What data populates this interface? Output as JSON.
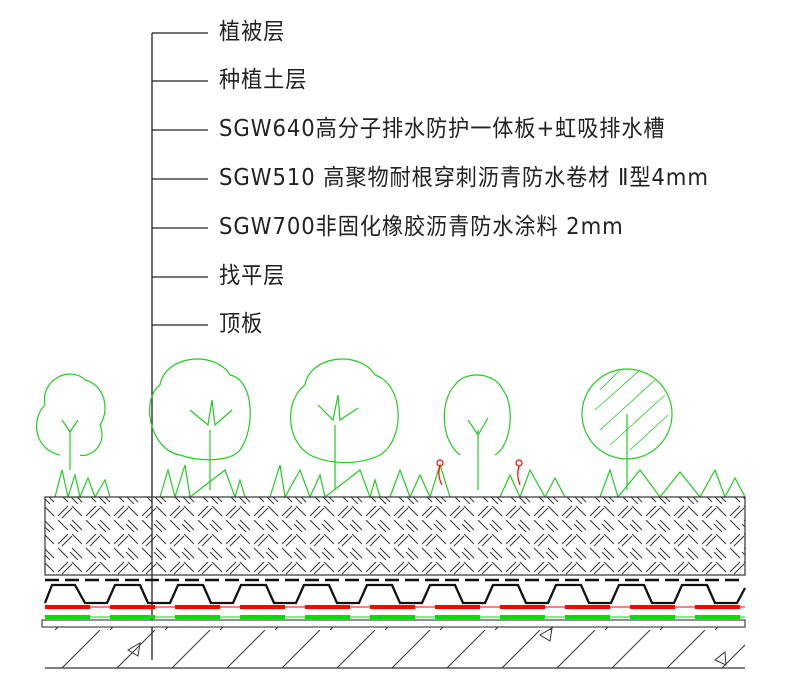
{
  "labels": [
    "植被层",
    "种植土层",
    "SGW640高分子排水防护一体板+虹吸排水槽",
    "SGW510 高聚物耐根穿刺沥青防水卷材 Ⅱ型4mm",
    "SGW700非固化橡胶沥青防水涂料 2mm",
    "找平层",
    "顶板"
  ],
  "colors": {
    "line": "#222222",
    "vegetation": "#22dd22",
    "membrane_red": "#ff0000",
    "membrane_green": "#00dd00",
    "flower": "#ff0000"
  }
}
